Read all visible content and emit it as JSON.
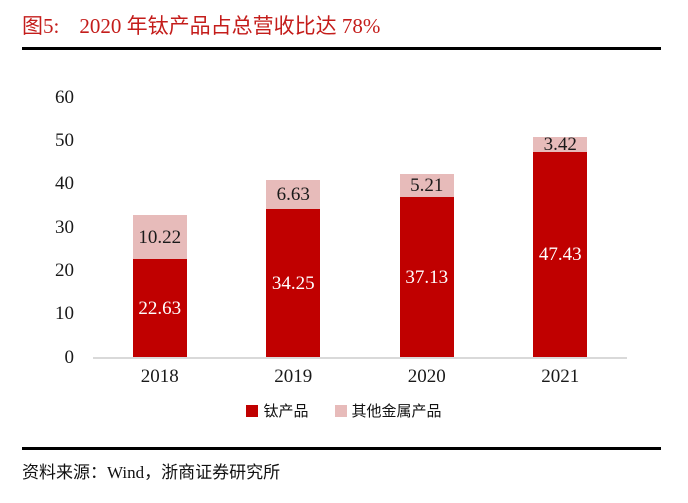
{
  "header": {
    "figure_label": "图5:",
    "title": "2020 年钛产品占总营收比达 78%"
  },
  "footer": {
    "source": "资料来源：Wind，浙商证券研究所"
  },
  "colors": {
    "titanium": "#C00000",
    "other": "#E7BBBA",
    "title_text": "#C41D1B",
    "axis_line": "#D9D9D9",
    "label_on_dark": "#FFFFFF",
    "label_on_light": "#1A1A1A"
  },
  "chart_data": {
    "type": "bar",
    "stacked": true,
    "title": "2020 年钛产品占总营收比达 78%",
    "categories": [
      "2018",
      "2019",
      "2020",
      "2021"
    ],
    "series": [
      {
        "name": "钛产品",
        "key": "titanium",
        "values": [
          22.63,
          34.25,
          37.13,
          47.43
        ]
      },
      {
        "name": "其他金属产品",
        "key": "other",
        "values": [
          10.22,
          6.63,
          5.21,
          3.42
        ]
      }
    ],
    "xlabel": "",
    "ylabel": "",
    "ylim": [
      0,
      60
    ],
    "yticks": [
      0,
      10,
      20,
      30,
      40,
      50,
      60
    ],
    "grid": false,
    "data_labels": true,
    "legend_position": "bottom"
  }
}
